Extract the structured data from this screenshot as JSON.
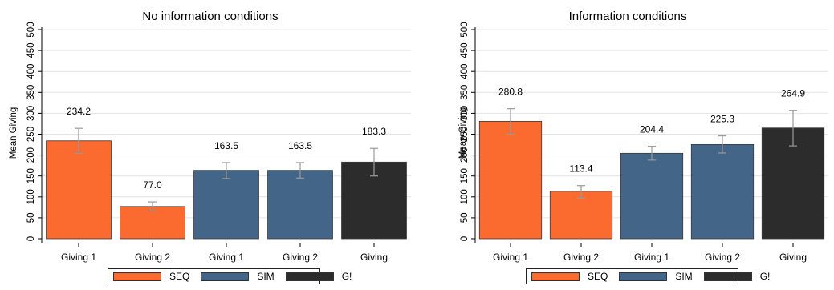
{
  "chart_data": [
    {
      "type": "bar",
      "title": "No information conditions",
      "ylabel": "Mean Giving",
      "ylim": [
        0,
        500
      ],
      "yticks": [
        0,
        50,
        100,
        150,
        200,
        250,
        300,
        350,
        400,
        450,
        500
      ],
      "grid": true,
      "categories": [
        "Giving 1",
        "Giving 2",
        "Giving 1",
        "Giving 2",
        "Giving"
      ],
      "values": [
        234.2,
        77.0,
        163.5,
        163.5,
        183.3
      ],
      "value_labels": [
        "234.2",
        "77.0",
        "163.5",
        "163.5",
        "183.3"
      ],
      "groups": [
        "SEQ",
        "SEQ",
        "SIM",
        "SIM",
        "G!"
      ],
      "error_bars": [
        [
          204,
          264
        ],
        [
          66,
          88
        ],
        [
          144,
          182
        ],
        [
          145,
          182
        ],
        [
          150,
          216
        ]
      ],
      "legend": [
        "SEQ",
        "SIM",
        "G!"
      ],
      "legend_position": "bottom"
    },
    {
      "type": "bar",
      "title": "Information conditions",
      "ylabel": "Mean Giving",
      "ylim": [
        0,
        500
      ],
      "yticks": [
        0,
        50,
        100,
        150,
        200,
        250,
        300,
        350,
        400,
        450,
        500
      ],
      "grid": true,
      "categories": [
        "Giving 1",
        "Giving 2",
        "Giving 1",
        "Giving 2",
        "Giving"
      ],
      "values": [
        280.8,
        113.4,
        204.4,
        225.3,
        264.9
      ],
      "value_labels": [
        "280.8",
        "113.4",
        "204.4",
        "225.3",
        "264.9"
      ],
      "groups": [
        "SEQ",
        "SEQ",
        "SIM",
        "SIM",
        "G!"
      ],
      "error_bars": [
        [
          250,
          311
        ],
        [
          97,
          127
        ],
        [
          188,
          221
        ],
        [
          205,
          246
        ],
        [
          222,
          307
        ]
      ],
      "legend": [
        "SEQ",
        "SIM",
        "G!"
      ],
      "legend_position": "bottom"
    }
  ],
  "colors": {
    "SEQ": "#fb6a2f",
    "SIM": "#436688",
    "G!": "#2c2c2c"
  }
}
